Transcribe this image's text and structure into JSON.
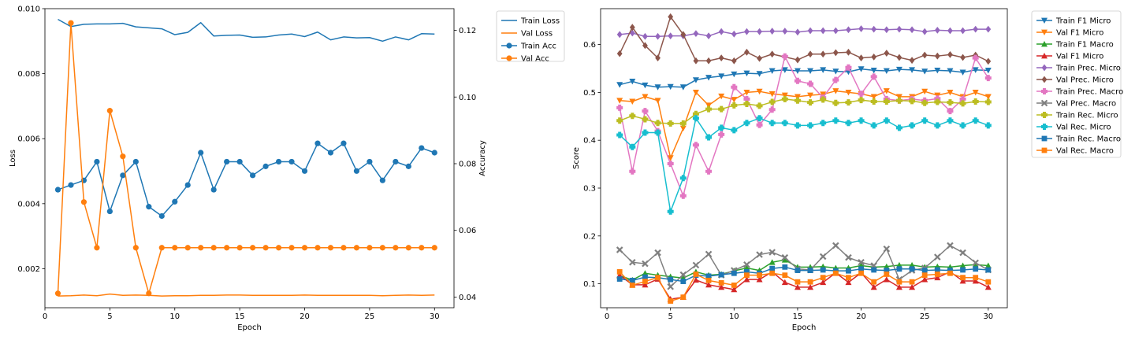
{
  "chart_data": [
    {
      "type": "line",
      "x": [
        1,
        2,
        3,
        4,
        5,
        6,
        7,
        8,
        9,
        10,
        11,
        12,
        13,
        14,
        15,
        16,
        17,
        18,
        19,
        20,
        21,
        22,
        23,
        24,
        25,
        26,
        27,
        28,
        29,
        30
      ],
      "xlabel": "Epoch",
      "ylabel": "Loss",
      "ylabel_right": "Accuracy",
      "xlim": [
        0,
        31.5
      ],
      "xticks": [
        0,
        5,
        10,
        15,
        20,
        25,
        30
      ],
      "ylim": [
        0.0008,
        0.01
      ],
      "yticks": [
        0.002,
        0.004,
        0.006,
        0.008,
        0.01
      ],
      "yticklabels": [
        "0.002",
        "0.004",
        "0.006",
        "0.008",
        "0.010"
      ],
      "ylim_right": [
        0.0368,
        0.1265
      ],
      "yticks_right": [
        0.04,
        0.06,
        0.08,
        0.1,
        0.12
      ],
      "yticklabels_right": [
        "0.04",
        "0.06",
        "0.08",
        "0.10",
        "0.12"
      ],
      "legend_position": "outside-right",
      "series": [
        {
          "name": "Train Loss",
          "axis": "left",
          "color": "#1f77b4",
          "marker": "none",
          "values": [
            0.00967,
            0.00945,
            0.00952,
            0.00953,
            0.00953,
            0.00955,
            0.00944,
            0.00941,
            0.00938,
            0.0092,
            0.00927,
            0.00957,
            0.00916,
            0.00918,
            0.00919,
            0.00912,
            0.00913,
            0.00919,
            0.00922,
            0.00914,
            0.00928,
            0.00904,
            0.00913,
            0.0091,
            0.00911,
            0.009,
            0.00913,
            0.00904,
            0.00923,
            0.00922
          ]
        },
        {
          "name": "Val Loss",
          "axis": "left",
          "color": "#ff7f0e",
          "marker": "none",
          "values": [
            0.00116,
            0.00117,
            0.00119,
            0.00117,
            0.00122,
            0.00118,
            0.00119,
            0.00118,
            0.00116,
            0.00117,
            0.00117,
            0.00118,
            0.00118,
            0.00119,
            0.00119,
            0.00118,
            0.00118,
            0.00118,
            0.00118,
            0.00119,
            0.00118,
            0.00118,
            0.00118,
            0.00118,
            0.00118,
            0.00117,
            0.00118,
            0.00119,
            0.00118,
            0.00119
          ]
        },
        {
          "name": "Train Acc",
          "axis": "right",
          "color": "#1f77b4",
          "marker": "circle",
          "values": [
            0.0722,
            0.0736,
            0.075,
            0.0806,
            0.0657,
            0.0765,
            0.0806,
            0.0671,
            0.0643,
            0.0686,
            0.0736,
            0.0833,
            0.0722,
            0.0806,
            0.0806,
            0.0765,
            0.0792,
            0.0806,
            0.0806,
            0.0778,
            0.0861,
            0.0833,
            0.0861,
            0.0778,
            0.0806,
            0.075,
            0.0806,
            0.0792,
            0.0847,
            0.0833
          ]
        },
        {
          "name": "Val Acc",
          "axis": "right",
          "color": "#ff7f0e",
          "marker": "circle",
          "values": [
            0.0411,
            0.1222,
            0.0685,
            0.0548,
            0.0959,
            0.0822,
            0.0548,
            0.0411,
            0.0548,
            0.0548,
            0.0548,
            0.0548,
            0.0548,
            0.0548,
            0.0548,
            0.0548,
            0.0548,
            0.0548,
            0.0548,
            0.0548,
            0.0548,
            0.0548,
            0.0548,
            0.0548,
            0.0548,
            0.0548,
            0.0548,
            0.0548,
            0.0548,
            0.0548
          ]
        }
      ]
    },
    {
      "type": "line",
      "x": [
        1,
        2,
        3,
        4,
        5,
        6,
        7,
        8,
        9,
        10,
        11,
        12,
        13,
        14,
        15,
        16,
        17,
        18,
        19,
        20,
        21,
        22,
        23,
        24,
        25,
        26,
        27,
        28,
        29,
        30
      ],
      "xlabel": "Epoch",
      "ylabel": "Score",
      "xlim": [
        -0.5,
        31.5
      ],
      "xticks": [
        0,
        5,
        10,
        15,
        20,
        25,
        30
      ],
      "ylim": [
        0.05,
        0.675
      ],
      "yticks": [
        0.1,
        0.2,
        0.3,
        0.4,
        0.5,
        0.6
      ],
      "yticklabels": [
        "0.1",
        "0.2",
        "0.3",
        "0.4",
        "0.5",
        "0.6"
      ],
      "legend_position": "outside-right",
      "series": [
        {
          "name": "Train F1 Micro",
          "color": "#1f77b4",
          "marker": "triangle-down",
          "values": [
            0.516,
            0.523,
            0.515,
            0.511,
            0.512,
            0.511,
            0.526,
            0.531,
            0.534,
            0.538,
            0.54,
            0.539,
            0.545,
            0.547,
            0.545,
            0.545,
            0.547,
            0.544,
            0.543,
            0.549,
            0.546,
            0.545,
            0.548,
            0.547,
            0.544,
            0.546,
            0.545,
            0.542,
            0.547,
            0.546
          ]
        },
        {
          "name": "Val F1 Micro",
          "color": "#ff7f0e",
          "marker": "triangle-down",
          "values": [
            0.483,
            0.481,
            0.491,
            0.483,
            0.363,
            0.425,
            0.5,
            0.473,
            0.492,
            0.485,
            0.5,
            0.502,
            0.497,
            0.494,
            0.491,
            0.494,
            0.496,
            0.503,
            0.5,
            0.497,
            0.491,
            0.503,
            0.491,
            0.491,
            0.502,
            0.494,
            0.5,
            0.491,
            0.5,
            0.491
          ]
        },
        {
          "name": "Train F1 Macro",
          "color": "#2ca02c",
          "marker": "triangle-up",
          "values": [
            0.117,
            0.108,
            0.122,
            0.118,
            0.115,
            0.112,
            0.125,
            0.118,
            0.12,
            0.127,
            0.133,
            0.128,
            0.145,
            0.15,
            0.135,
            0.135,
            0.136,
            0.133,
            0.133,
            0.138,
            0.135,
            0.136,
            0.139,
            0.139,
            0.135,
            0.136,
            0.135,
            0.138,
            0.14,
            0.138
          ]
        },
        {
          "name": "Val F1 Micro",
          "color": "#d62728",
          "marker": "triangle-up",
          "values": [
            0.118,
            0.098,
            0.098,
            0.11,
            0.068,
            0.072,
            0.108,
            0.098,
            0.093,
            0.088,
            0.109,
            0.109,
            0.125,
            0.103,
            0.093,
            0.093,
            0.103,
            0.123,
            0.103,
            0.123,
            0.093,
            0.109,
            0.093,
            0.093,
            0.109,
            0.113,
            0.125,
            0.106,
            0.106,
            0.093
          ]
        },
        {
          "name": "Train Prec. Micro",
          "color": "#9467bd",
          "marker": "diamond",
          "values": [
            0.621,
            0.624,
            0.617,
            0.617,
            0.618,
            0.618,
            0.623,
            0.618,
            0.627,
            0.622,
            0.627,
            0.627,
            0.628,
            0.628,
            0.626,
            0.629,
            0.629,
            0.629,
            0.631,
            0.633,
            0.632,
            0.631,
            0.632,
            0.631,
            0.627,
            0.63,
            0.629,
            0.629,
            0.632,
            0.632
          ]
        },
        {
          "name": "Val Prec. Micro",
          "color": "#8c564b",
          "marker": "diamond",
          "values": [
            0.581,
            0.636,
            0.598,
            0.572,
            0.658,
            0.621,
            0.566,
            0.566,
            0.572,
            0.566,
            0.584,
            0.571,
            0.58,
            0.574,
            0.568,
            0.58,
            0.58,
            0.583,
            0.584,
            0.572,
            0.574,
            0.582,
            0.573,
            0.567,
            0.578,
            0.576,
            0.579,
            0.573,
            0.578,
            0.565
          ]
        },
        {
          "name": "Train Prec. Macro",
          "color": "#e377c2",
          "marker": "plus",
          "values": [
            0.468,
            0.335,
            0.461,
            0.419,
            0.351,
            0.284,
            0.39,
            0.335,
            0.412,
            0.511,
            0.486,
            0.432,
            0.464,
            0.575,
            0.524,
            0.518,
            0.489,
            0.526,
            0.552,
            0.497,
            0.533,
            0.486,
            0.483,
            0.486,
            0.483,
            0.487,
            0.461,
            0.486,
            0.572,
            0.53
          ]
        },
        {
          "name": "Val Prec. Macro",
          "color": "#7f7f7f",
          "marker": "x",
          "values": [
            0.171,
            0.145,
            0.142,
            0.165,
            0.094,
            0.119,
            0.139,
            0.162,
            0.118,
            0.128,
            0.14,
            0.161,
            0.166,
            0.155,
            0.131,
            0.129,
            0.157,
            0.18,
            0.155,
            0.145,
            0.138,
            0.173,
            0.109,
            0.128,
            0.133,
            0.156,
            0.18,
            0.165,
            0.144,
            0.129
          ]
        },
        {
          "name": "Train Rec. Micro",
          "color": "#bcbd22",
          "marker": "plus",
          "values": [
            0.441,
            0.451,
            0.444,
            0.436,
            0.435,
            0.435,
            0.455,
            0.465,
            0.465,
            0.473,
            0.476,
            0.472,
            0.48,
            0.486,
            0.483,
            0.479,
            0.485,
            0.478,
            0.479,
            0.484,
            0.481,
            0.481,
            0.483,
            0.482,
            0.478,
            0.48,
            0.479,
            0.477,
            0.481,
            0.48
          ]
        },
        {
          "name": "Val Rec. Micro",
          "color": "#17becf",
          "marker": "plus",
          "values": [
            0.411,
            0.386,
            0.416,
            0.416,
            0.251,
            0.321,
            0.446,
            0.406,
            0.426,
            0.421,
            0.436,
            0.446,
            0.436,
            0.436,
            0.431,
            0.431,
            0.436,
            0.441,
            0.436,
            0.441,
            0.431,
            0.441,
            0.426,
            0.431,
            0.441,
            0.431,
            0.441,
            0.431,
            0.441,
            0.431
          ]
        },
        {
          "name": "Train Rec. Macro",
          "color": "#1f77b4",
          "marker": "square",
          "values": [
            0.11,
            0.107,
            0.114,
            0.113,
            0.109,
            0.105,
            0.118,
            0.116,
            0.119,
            0.122,
            0.125,
            0.122,
            0.132,
            0.135,
            0.128,
            0.128,
            0.129,
            0.127,
            0.127,
            0.131,
            0.129,
            0.128,
            0.131,
            0.131,
            0.128,
            0.129,
            0.128,
            0.129,
            0.131,
            0.129
          ]
        },
        {
          "name": "Val Rec. Macro",
          "color": "#ff7f0e",
          "marker": "square",
          "values": [
            0.125,
            0.097,
            0.105,
            0.113,
            0.064,
            0.072,
            0.12,
            0.107,
            0.102,
            0.097,
            0.118,
            0.118,
            0.122,
            0.118,
            0.104,
            0.104,
            0.113,
            0.122,
            0.113,
            0.122,
            0.104,
            0.12,
            0.104,
            0.104,
            0.118,
            0.12,
            0.122,
            0.113,
            0.113,
            0.104
          ]
        }
      ]
    }
  ]
}
